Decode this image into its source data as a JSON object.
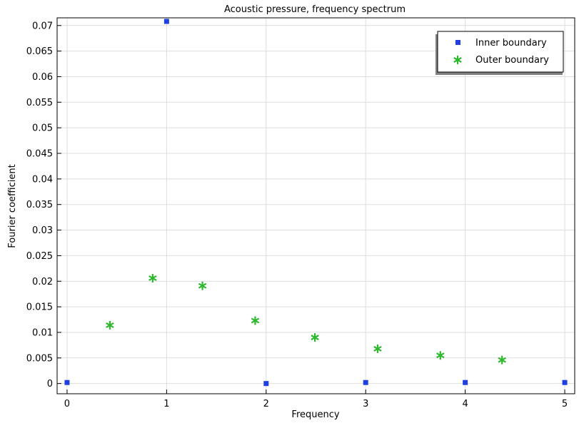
{
  "chart_data": {
    "type": "scatter",
    "title": "Acoustic pressure, frequency spectrum",
    "xlabel": "Frequency",
    "ylabel": "Fourier coefficient",
    "xlim": [
      -0.1,
      5.1
    ],
    "ylim": [
      -0.002,
      0.0715
    ],
    "x_ticks": [
      0,
      1,
      2,
      3,
      4,
      5
    ],
    "y_ticks": [
      0,
      0.005,
      0.01,
      0.015,
      0.02,
      0.025,
      0.03,
      0.035,
      0.04,
      0.045,
      0.05,
      0.055,
      0.06,
      0.065,
      0.07
    ],
    "grid": true,
    "legend_position": "top-right",
    "series": [
      {
        "name": "Inner boundary",
        "marker": "square",
        "color": "#1f3fe0",
        "x": [
          0,
          1,
          2,
          3,
          4,
          5
        ],
        "y": [
          0.0002,
          0.0708,
          0.0,
          0.0002,
          0.0002,
          0.0002
        ]
      },
      {
        "name": "Outer boundary",
        "marker": "asterisk",
        "color": "#2eb82e",
        "x": [
          0.43,
          0.86,
          1.36,
          1.89,
          2.49,
          3.12,
          3.75,
          4.37
        ],
        "y": [
          0.0114,
          0.0206,
          0.0191,
          0.0123,
          0.009,
          0.0068,
          0.0055,
          0.0046
        ]
      }
    ]
  }
}
